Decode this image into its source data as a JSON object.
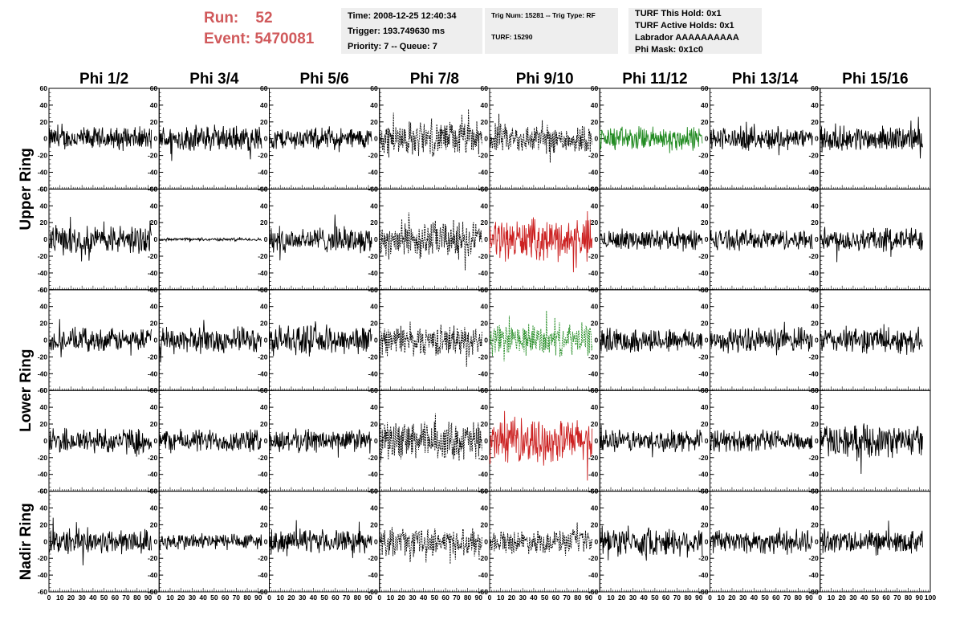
{
  "run_info": {
    "run_label": "Run:",
    "run_value": "52",
    "event_label": "Event:",
    "event_value": "5470081"
  },
  "info_box_1": {
    "time": "Time: 2008-12-25 12:40:34",
    "trigger": "Trigger: 193.749630 ms",
    "priority": "Priority: 7 -- Queue: 7"
  },
  "info_box_2": {
    "trig": "Trig Num: 15281 -- Trig Type: RF",
    "turf": "TURF: 15290"
  },
  "info_box_3": {
    "hold": "TURF This Hold: 0x1",
    "active": "TURF Active Holds: 0x1",
    "labrador": "Labrador AAAAAAAAAA",
    "phimask": "Phi Mask: 0x1c0"
  },
  "chart_data": {
    "type": "line",
    "columns": [
      "Phi 1/2",
      "Phi 3/4",
      "Phi 5/6",
      "Phi 7/8",
      "Phi 9/10",
      "Phi 11/12",
      "Phi 13/14",
      "Phi 15/16"
    ],
    "ring_labels": [
      {
        "label": "Upper Ring",
        "rows": [
          0,
          1
        ]
      },
      {
        "label": "Lower Ring",
        "rows": [
          2,
          3
        ]
      },
      {
        "label": "Nadir Ring",
        "rows": [
          4
        ]
      }
    ],
    "xlim": [
      0,
      100
    ],
    "ylim": [
      -60,
      60
    ],
    "x_ticks": [
      0,
      10,
      20,
      30,
      40,
      50,
      60,
      70,
      80,
      90,
      100
    ],
    "y_ticks": [
      -60,
      -40,
      -20,
      0,
      20,
      40,
      60
    ],
    "trace_colors": {
      "normal": "#000000",
      "trigger": "#228b22",
      "highlight": "#cc2222"
    },
    "panels": [
      [
        {
          "amp": 16,
          "style": "solid",
          "color": "normal"
        },
        {
          "amp": 18,
          "style": "solid",
          "color": "normal"
        },
        {
          "amp": 15,
          "style": "solid",
          "color": "normal"
        },
        {
          "amp": 24,
          "style": "dotted",
          "color": "normal"
        },
        {
          "amp": 20,
          "style": "dotted",
          "color": "normal"
        },
        {
          "amp": 17,
          "style": "solid",
          "color": "trigger"
        },
        {
          "amp": 16,
          "style": "solid",
          "color": "normal"
        },
        {
          "amp": 17,
          "style": "solid",
          "color": "normal"
        }
      ],
      [
        {
          "amp": 20,
          "style": "solid",
          "color": "normal"
        },
        {
          "amp": 2,
          "style": "solid",
          "color": "normal"
        },
        {
          "amp": 18,
          "style": "solid",
          "color": "normal"
        },
        {
          "amp": 26,
          "style": "dotted",
          "color": "normal"
        },
        {
          "amp": 28,
          "style": "solid",
          "color": "highlight"
        },
        {
          "amp": 14,
          "style": "solid",
          "color": "normal"
        },
        {
          "amp": 14,
          "style": "solid",
          "color": "normal"
        },
        {
          "amp": 17,
          "style": "solid",
          "color": "normal"
        }
      ],
      [
        {
          "amp": 16,
          "style": "solid",
          "color": "normal"
        },
        {
          "amp": 18,
          "style": "solid",
          "color": "normal"
        },
        {
          "amp": 20,
          "style": "solid",
          "color": "normal"
        },
        {
          "amp": 21,
          "style": "dotted",
          "color": "normal"
        },
        {
          "amp": 22,
          "style": "dotted",
          "color": "trigger"
        },
        {
          "amp": 17,
          "style": "solid",
          "color": "normal"
        },
        {
          "amp": 17,
          "style": "solid",
          "color": "normal"
        },
        {
          "amp": 18,
          "style": "solid",
          "color": "normal"
        }
      ],
      [
        {
          "amp": 18,
          "style": "solid",
          "color": "normal"
        },
        {
          "amp": 16,
          "style": "solid",
          "color": "normal"
        },
        {
          "amp": 16,
          "style": "solid",
          "color": "normal"
        },
        {
          "amp": 27,
          "style": "dotted",
          "color": "normal"
        },
        {
          "amp": 30,
          "style": "solid",
          "color": "highlight"
        },
        {
          "amp": 15,
          "style": "solid",
          "color": "normal"
        },
        {
          "amp": 15,
          "style": "solid",
          "color": "normal"
        },
        {
          "amp": 22,
          "style": "solid",
          "color": "normal"
        }
      ],
      [
        {
          "amp": 18,
          "style": "solid",
          "color": "normal"
        },
        {
          "amp": 12,
          "style": "solid",
          "color": "normal"
        },
        {
          "amp": 16,
          "style": "solid",
          "color": "normal"
        },
        {
          "amp": 19,
          "style": "dotted",
          "color": "normal"
        },
        {
          "amp": 16,
          "style": "dotted",
          "color": "normal"
        },
        {
          "amp": 20,
          "style": "solid",
          "color": "normal"
        },
        {
          "amp": 17,
          "style": "solid",
          "color": "normal"
        },
        {
          "amp": 16,
          "style": "solid",
          "color": "normal"
        }
      ]
    ]
  }
}
